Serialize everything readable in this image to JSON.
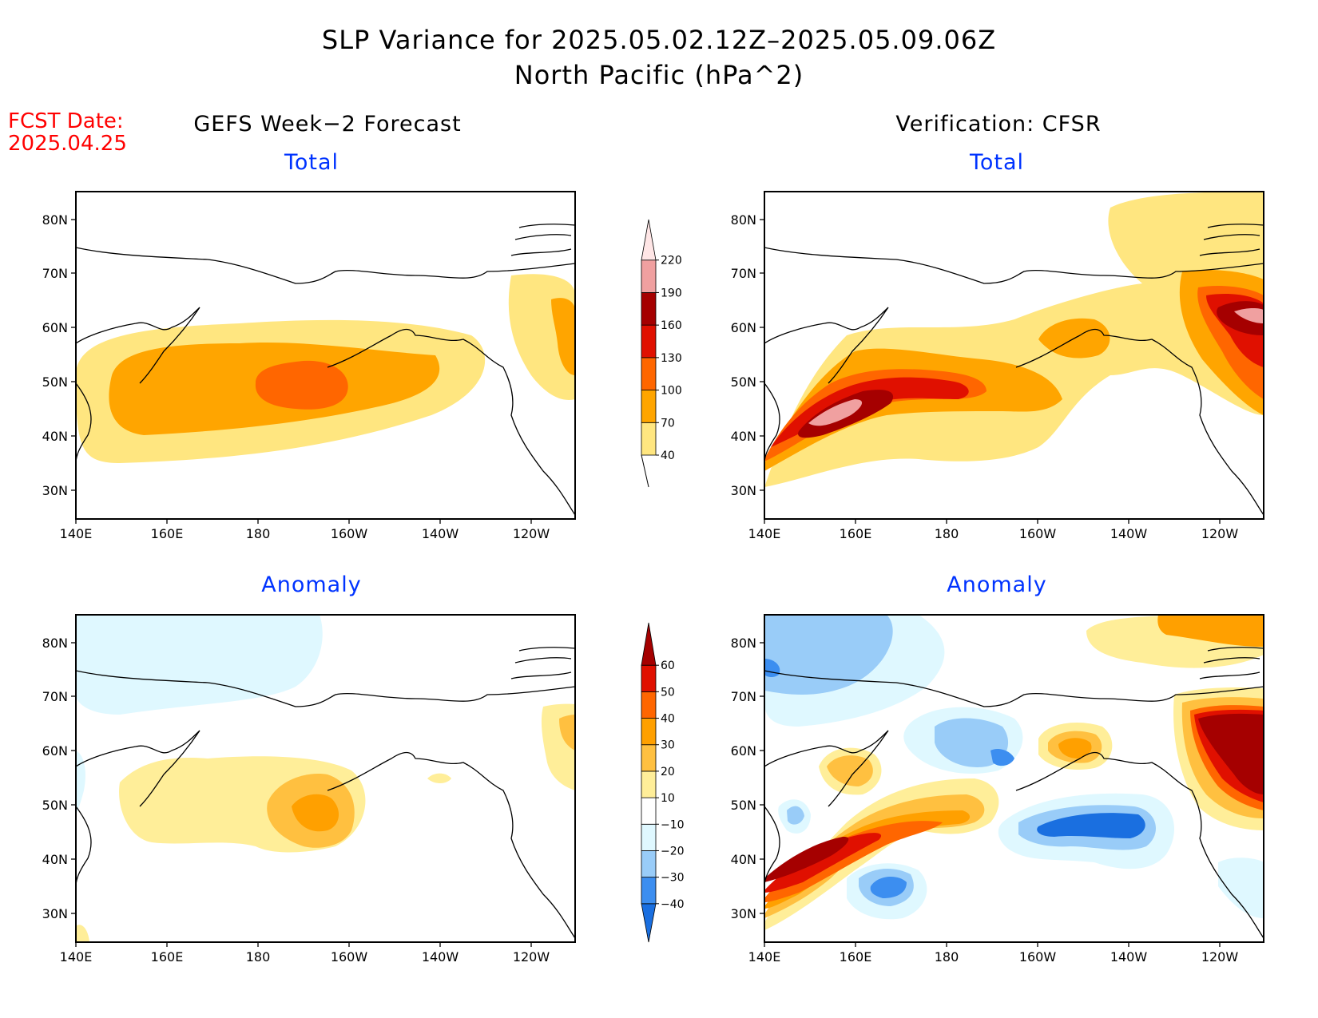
{
  "title": "SLP Variance for 2025.05.02.12Z–2025.05.09.06Z",
  "subtitle": "North Pacific (hPa^2)",
  "fcst_label": "FCST Date:",
  "fcst_date": "2025.04.25",
  "columns": {
    "left": "GEFS Week−2 Forecast",
    "right": "Verification: CFSR"
  },
  "panels": {
    "total": "Total",
    "anomaly": "Anomaly"
  },
  "map_axes": {
    "lat_labels": [
      "80N",
      "70N",
      "60N",
      "50N",
      "40N",
      "30N"
    ],
    "lon_labels": [
      "140E",
      "160E",
      "180",
      "160W",
      "140W",
      "120W"
    ]
  },
  "colorbars": {
    "total": {
      "levels": [
        "40",
        "70",
        "100",
        "130",
        "160",
        "190",
        "220"
      ],
      "colors": [
        "#ffe680",
        "#ffa500",
        "#ff6600",
        "#e01000",
        "#a50000",
        "#f0a0a0",
        "#ffe6e6"
      ]
    },
    "anomaly": {
      "levels": [
        "−40",
        "−30",
        "−20",
        "−10",
        "10",
        "20",
        "30",
        "40",
        "50",
        "60"
      ],
      "colors": [
        "#1a6fe0",
        "#3c8ef0",
        "#99ccf8",
        "#dff8ff",
        "#ffffff",
        "#ffee99",
        "#ffc040",
        "#ffa000",
        "#ff6600",
        "#e01000",
        "#a50000"
      ]
    }
  }
}
